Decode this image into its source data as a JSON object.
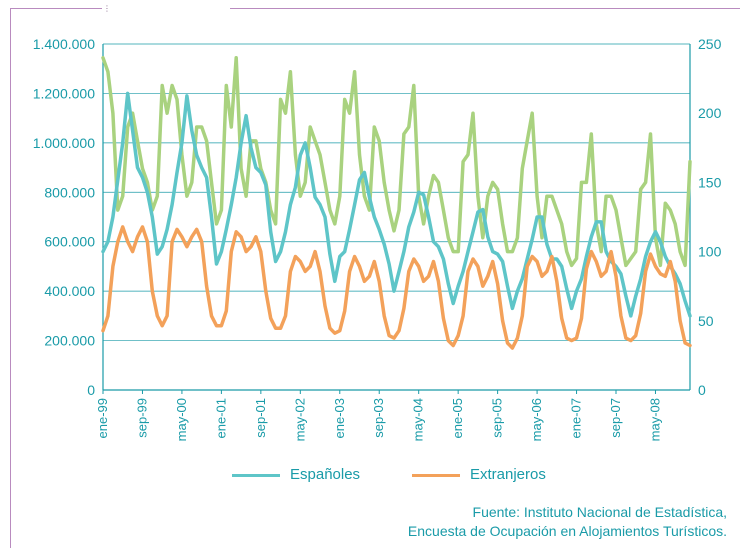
{
  "chart_data": {
    "type": "line",
    "left_axis": {
      "ticks": [
        "0",
        "200.000",
        "400.000",
        "600.000",
        "800.000",
        "1.000.000",
        "1.200.000",
        "1.400.000"
      ],
      "ylim": [
        0,
        1400000
      ]
    },
    "right_axis": {
      "ticks": [
        "0",
        "50",
        "100",
        "150",
        "200",
        "250"
      ],
      "ylim": [
        0,
        250
      ]
    },
    "x_tick_labels": [
      "ene-99",
      "sep-99",
      "may-00",
      "ene-01",
      "sep-01",
      "may-02",
      "ene-03",
      "sep-03",
      "may-04",
      "ene-05",
      "sep-05",
      "may-06",
      "ene-07",
      "sep-07",
      "may-08"
    ],
    "x_tick_month_index": [
      0,
      8,
      16,
      24,
      32,
      40,
      48,
      56,
      64,
      72,
      80,
      88,
      96,
      104,
      112
    ],
    "grid": "horizontal",
    "colors": {
      "espanoles": "#5ec5c8",
      "extranjeros": "#f3a15a",
      "third": "#a9d27f"
    },
    "series": [
      {
        "name": "Españoles",
        "axis": "left",
        "values": [
          560000,
          600000,
          700000,
          850000,
          1000000,
          1200000,
          1050000,
          900000,
          860000,
          800000,
          700000,
          550000,
          580000,
          650000,
          750000,
          880000,
          1000000,
          1190000,
          1050000,
          950000,
          900000,
          860000,
          700000,
          510000,
          560000,
          650000,
          750000,
          860000,
          1000000,
          1110000,
          980000,
          900000,
          880000,
          830000,
          640000,
          520000,
          560000,
          640000,
          750000,
          820000,
          950000,
          1000000,
          900000,
          780000,
          750000,
          700000,
          550000,
          440000,
          540000,
          560000,
          650000,
          750000,
          850000,
          880000,
          780000,
          700000,
          650000,
          590000,
          510000,
          400000,
          480000,
          560000,
          660000,
          720000,
          800000,
          790000,
          700000,
          600000,
          580000,
          530000,
          430000,
          350000,
          420000,
          480000,
          560000,
          640000,
          720000,
          730000,
          620000,
          560000,
          550000,
          520000,
          420000,
          330000,
          400000,
          450000,
          530000,
          610000,
          700000,
          700000,
          590000,
          530000,
          530000,
          500000,
          410000,
          330000,
          400000,
          450000,
          540000,
          620000,
          680000,
          680000,
          560000,
          520000,
          500000,
          470000,
          380000,
          300000,
          380000,
          450000,
          540000,
          600000,
          640000,
          600000,
          540000,
          500000,
          470000,
          430000,
          360000,
          300000
        ]
      },
      {
        "name": "Extranjeros",
        "axis": "left",
        "values": [
          240000,
          300000,
          500000,
          600000,
          660000,
          600000,
          560000,
          620000,
          660000,
          600000,
          400000,
          300000,
          260000,
          300000,
          600000,
          650000,
          620000,
          580000,
          620000,
          650000,
          600000,
          420000,
          300000,
          260000,
          260000,
          320000,
          560000,
          640000,
          620000,
          560000,
          580000,
          620000,
          560000,
          400000,
          290000,
          250000,
          250000,
          300000,
          480000,
          540000,
          520000,
          480000,
          500000,
          560000,
          480000,
          340000,
          250000,
          230000,
          240000,
          320000,
          480000,
          540000,
          500000,
          440000,
          460000,
          520000,
          440000,
          300000,
          220000,
          210000,
          240000,
          330000,
          480000,
          530000,
          500000,
          440000,
          460000,
          520000,
          440000,
          290000,
          200000,
          180000,
          220000,
          300000,
          480000,
          530000,
          500000,
          420000,
          460000,
          520000,
          430000,
          280000,
          190000,
          170000,
          210000,
          300000,
          500000,
          540000,
          520000,
          460000,
          480000,
          540000,
          440000,
          290000,
          210000,
          200000,
          210000,
          290000,
          490000,
          560000,
          520000,
          460000,
          480000,
          560000,
          460000,
          300000,
          210000,
          200000,
          220000,
          310000,
          480000,
          550000,
          500000,
          470000,
          460000,
          520000,
          440000,
          280000,
          190000,
          180000
        ]
      },
      {
        "name": "",
        "axis": "right",
        "values": [
          240,
          230,
          200,
          130,
          140,
          190,
          200,
          180,
          160,
          150,
          130,
          140,
          220,
          200,
          220,
          210,
          170,
          140,
          150,
          190,
          190,
          180,
          150,
          120,
          130,
          220,
          190,
          240,
          160,
          140,
          180,
          180,
          160,
          150,
          130,
          120,
          210,
          200,
          230,
          170,
          140,
          150,
          190,
          180,
          170,
          150,
          130,
          120,
          140,
          210,
          200,
          230,
          170,
          140,
          130,
          190,
          180,
          150,
          130,
          115,
          130,
          185,
          190,
          220,
          140,
          120,
          140,
          155,
          150,
          130,
          110,
          100,
          100,
          165,
          170,
          200,
          140,
          110,
          140,
          150,
          145,
          120,
          100,
          100,
          110,
          160,
          180,
          200,
          140,
          110,
          140,
          140,
          130,
          120,
          100,
          90,
          95,
          150,
          150,
          185,
          120,
          100,
          140,
          140,
          130,
          110,
          90,
          95,
          100,
          145,
          150,
          185,
          110,
          90,
          135,
          130,
          120,
          100,
          90,
          165
        ]
      }
    ]
  },
  "legend": {
    "items": [
      {
        "label": "Españoles",
        "color": "#5ec5c8"
      },
      {
        "label": "Extranjeros",
        "color": "#f3a15a"
      }
    ]
  },
  "source": {
    "line1": "Fuente: Instituto Nacional de Estadística,",
    "line2": "Encuesta de Ocupación en Alojamientos Turísticos."
  }
}
